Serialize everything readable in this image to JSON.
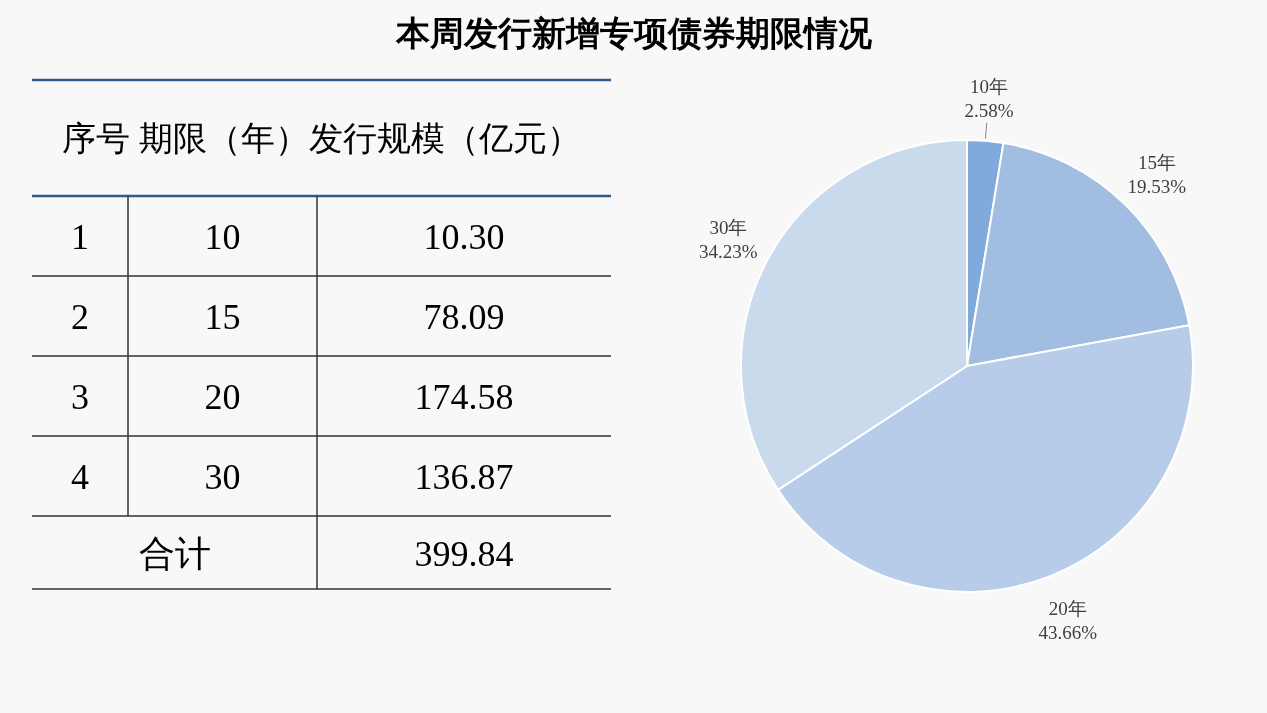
{
  "chart_data": {
    "type": "pie",
    "title": "本周发行新增专项债券期限情况",
    "categories": [
      "10年",
      "15年",
      "20年",
      "30年"
    ],
    "values": [
      2.58,
      19.53,
      43.66,
      34.23
    ],
    "colors": [
      "#80aadb",
      "#a2bde2",
      "#b7cce8",
      "#cadaed"
    ],
    "value_labels": [
      "2.58%",
      "19.53%",
      "43.66%",
      "34.23%"
    ],
    "annotations": [
      "序号 期限（年）发行规模（亿元）",
      "1",
      "10",
      "10.30",
      "2",
      "15",
      "78.09",
      "3",
      "20",
      "174.58",
      "4",
      "30",
      "136.87",
      "合计",
      "399.84"
    ]
  }
}
